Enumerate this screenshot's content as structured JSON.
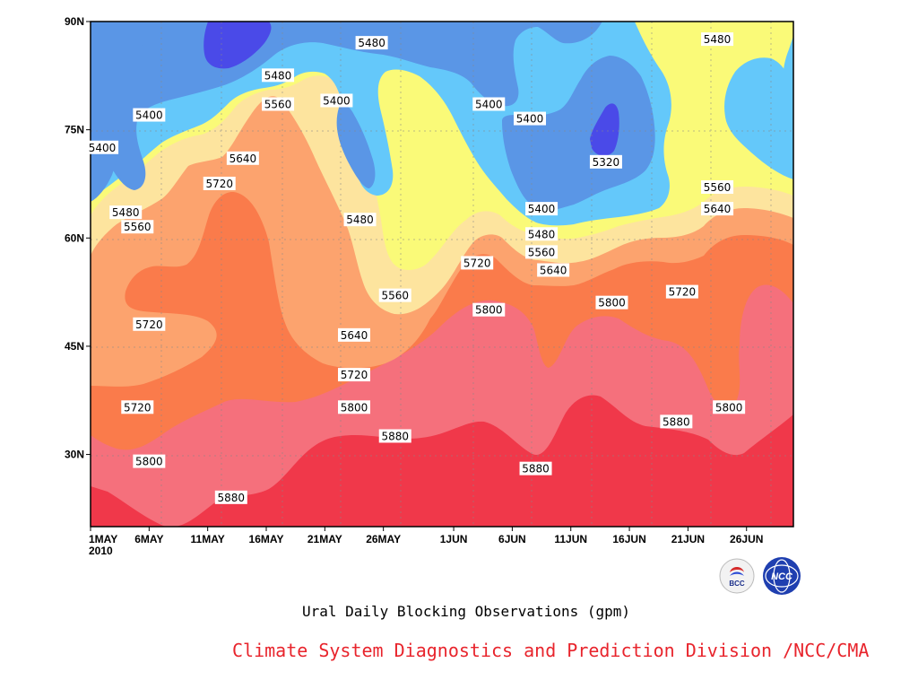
{
  "chart_data": {
    "type": "contour",
    "title": "Ural Daily Blocking Observations (gpm)",
    "x_axis": {
      "ticks": [
        "1MAY",
        "6MAY",
        "11MAY",
        "16MAY",
        "21MAY",
        "26MAY",
        "1JUN",
        "6JUN",
        "11JUN",
        "16JUN",
        "21JUN",
        "26JUN"
      ],
      "tick_days": [
        0,
        5,
        10,
        15,
        20,
        25,
        31,
        36,
        41,
        46,
        51,
        56
      ],
      "year_label": "2010",
      "range_days": [
        0,
        60
      ]
    },
    "y_axis": {
      "ticks": [
        "30N",
        "45N",
        "60N",
        "75N",
        "90N"
      ],
      "tick_values": [
        30,
        45,
        60,
        75,
        90
      ],
      "range": [
        20,
        90
      ]
    },
    "grid": true,
    "levels": [
      5320,
      5400,
      5480,
      5560,
      5640,
      5720,
      5800,
      5880
    ],
    "fill_colors": [
      "#4a4ae8",
      "#5a96e6",
      "#64c8fa",
      "#fafa78",
      "#fde49e",
      "#fca36e",
      "#fa7b4b",
      "#f5707c",
      "#f0384a"
    ],
    "contour_labels": [
      {
        "text": "5400",
        "day": 5,
        "lat": 77
      },
      {
        "text": "5400",
        "day": 1,
        "lat": 72.5
      },
      {
        "text": "5480",
        "day": 16,
        "lat": 82.5
      },
      {
        "text": "5560",
        "day": 16,
        "lat": 78.5
      },
      {
        "text": "5480",
        "day": 24,
        "lat": 87
      },
      {
        "text": "5400",
        "day": 21,
        "lat": 79
      },
      {
        "text": "5400",
        "day": 34,
        "lat": 78.5
      },
      {
        "text": "5400",
        "day": 37.5,
        "lat": 76.5
      },
      {
        "text": "5320",
        "day": 44,
        "lat": 70.5
      },
      {
        "text": "5480",
        "day": 53.5,
        "lat": 87.5
      },
      {
        "text": "5640",
        "day": 13,
        "lat": 71
      },
      {
        "text": "5720",
        "day": 11,
        "lat": 67.5
      },
      {
        "text": "5480",
        "day": 3,
        "lat": 63.5
      },
      {
        "text": "5560",
        "day": 4,
        "lat": 61.5
      },
      {
        "text": "5480",
        "day": 23,
        "lat": 62.5
      },
      {
        "text": "5400",
        "day": 38.5,
        "lat": 64
      },
      {
        "text": "5480",
        "day": 38.5,
        "lat": 60.5
      },
      {
        "text": "5560",
        "day": 38.5,
        "lat": 58
      },
      {
        "text": "5640",
        "day": 39.5,
        "lat": 55.5
      },
      {
        "text": "5560",
        "day": 26,
        "lat": 52
      },
      {
        "text": "5720",
        "day": 33,
        "lat": 56.5
      },
      {
        "text": "5800",
        "day": 34,
        "lat": 50
      },
      {
        "text": "5800",
        "day": 44.5,
        "lat": 51
      },
      {
        "text": "5720",
        "day": 50.5,
        "lat": 52.5
      },
      {
        "text": "5560",
        "day": 53.5,
        "lat": 67
      },
      {
        "text": "5640",
        "day": 53.5,
        "lat": 64
      },
      {
        "text": "5720",
        "day": 5,
        "lat": 48
      },
      {
        "text": "5640",
        "day": 22.5,
        "lat": 46.5
      },
      {
        "text": "5720",
        "day": 22.5,
        "lat": 41
      },
      {
        "text": "5720",
        "day": 4,
        "lat": 36.5
      },
      {
        "text": "5800",
        "day": 22.5,
        "lat": 36.5
      },
      {
        "text": "5800",
        "day": 54.5,
        "lat": 36.5
      },
      {
        "text": "5880",
        "day": 26,
        "lat": 32.5
      },
      {
        "text": "5880",
        "day": 50,
        "lat": 34.5
      },
      {
        "text": "5800",
        "day": 5,
        "lat": 29
      },
      {
        "text": "5880",
        "day": 12,
        "lat": 24
      },
      {
        "text": "5880",
        "day": 38,
        "lat": 28
      }
    ]
  },
  "caption": "Ural Daily Blocking Observations (gpm)",
  "credit": "Climate System Diagnostics and Prediction Division /NCC/CMA",
  "logos": [
    "BCC",
    "NCC"
  ]
}
